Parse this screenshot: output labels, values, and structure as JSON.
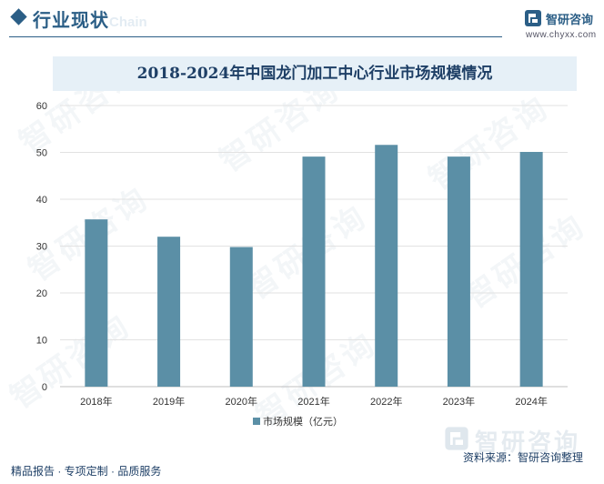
{
  "header": {
    "section_title": "行业现状",
    "ghost_subtitle": "Chain",
    "brand_name": "智研咨询",
    "brand_url": "www.chyxx.com",
    "accent_color": "#2b5e86"
  },
  "chart_data": {
    "type": "bar",
    "title": "2018-2024年中国龙门加工中心行业市场规模情况",
    "categories": [
      "2018年",
      "2019年",
      "2020年",
      "2021年",
      "2022年",
      "2023年",
      "2024年"
    ],
    "series": [
      {
        "name": "市场规模（亿元）",
        "values": [
          35.7,
          32.0,
          29.8,
          49.1,
          51.6,
          49.1,
          50.1
        ],
        "color": "#5b8fa6"
      }
    ],
    "ylim": [
      0,
      60
    ],
    "yticks": [
      "0",
      "10",
      "20",
      "30",
      "40",
      "50",
      "60"
    ],
    "xlabel": "",
    "ylabel": "",
    "grid": true,
    "legend": "bottom"
  },
  "watermark": {
    "text": "智研咨询"
  },
  "footer": {
    "tagline": "精品报告 · 专项定制 · 品质服务",
    "source": "资料来源：智研咨询整理",
    "brand_big": "智研咨询"
  }
}
